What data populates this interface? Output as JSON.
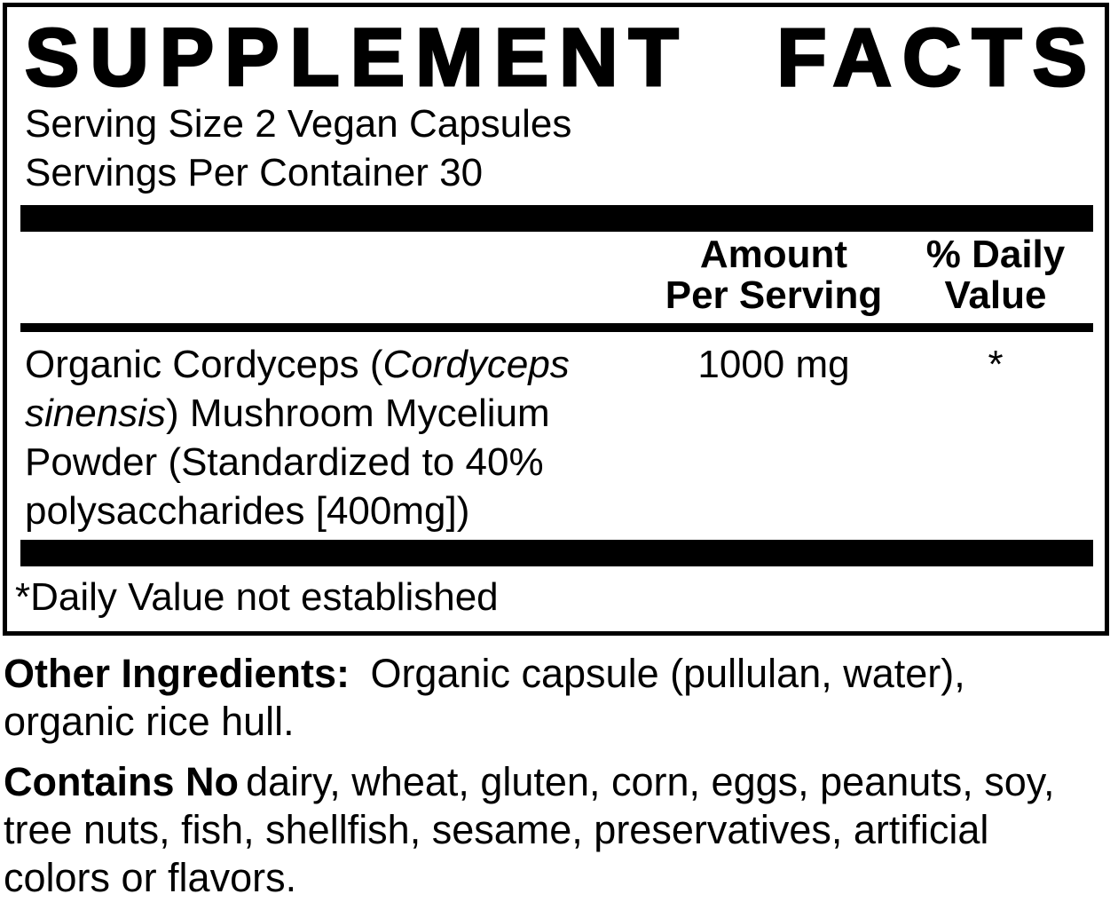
{
  "colors": {
    "ink": "#000000",
    "paper": "#ffffff"
  },
  "supplement_facts": {
    "title": "SUPPLEMENT FACTS",
    "serving_size": "Serving Size 2 Vegan Capsules",
    "servings_per_container": "Servings Per Container 30",
    "column_headers": {
      "amount_per_serving": "Amount\nPer Serving",
      "percent_daily_value": "% Daily\nValue"
    },
    "ingredients": [
      {
        "name_segments": [
          {
            "text": "Organic Cordyceps (",
            "italic": false
          },
          {
            "text": "Cordyceps\nsinensis",
            "italic": true
          },
          {
            "text": ") Mushroom Mycelium\nPowder (Standardized to 40%\npolysaccharides [400mg])",
            "italic": false
          }
        ],
        "amount_per_serving": "1000 mg",
        "percent_daily_value": "*"
      }
    ],
    "footnote": "*Daily Value not established"
  },
  "other_ingredients": {
    "label": "Other Ingredients:",
    "text": "Organic capsule (pullulan, water),\norganic rice hull."
  },
  "contains_no": {
    "label": "Contains No",
    "text": "dairy, wheat, gluten, corn, eggs, peanuts, soy,\ntree nuts, fish, shellfish, sesame, preservatives, artificial\ncolors or flavors."
  }
}
